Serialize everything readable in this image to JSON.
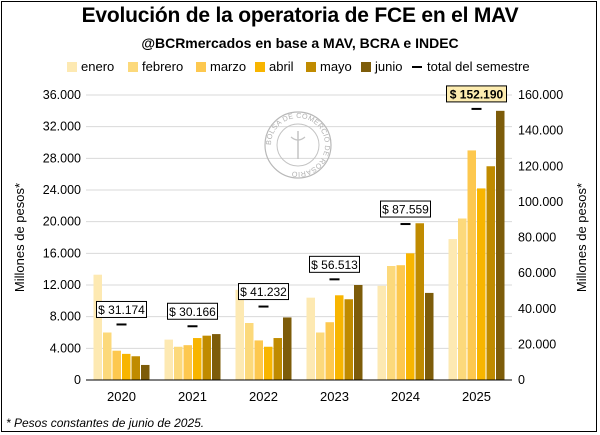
{
  "title": "Evolución de la operatoria de FCE en el MAV",
  "subtitle": "@BCRmercados en base a MAV, BCRA e INDEC",
  "footnote": "* Pesos constantes de junio de 2025.",
  "colors": {
    "enero": "#fde9b2",
    "febrero": "#fcd97b",
    "marzo": "#fdc84f",
    "abril": "#f8b500",
    "mayo": "#c08b00",
    "junio": "#7d5c0a",
    "total_marker": "#000000",
    "total_label_bg": "#ffffff",
    "total_label_bg_highlight": "#fdecb0",
    "grid": "#d9d9d9",
    "axis": "#808080"
  },
  "watermark_text": "BOLSA DE COMERCIO DE ROSARIO",
  "chart_data": {
    "type": "bar",
    "categories": [
      "2020",
      "2021",
      "2022",
      "2023",
      "2024",
      "2025"
    ],
    "series": [
      {
        "name": "enero",
        "values": [
          13300,
          5100,
          11400,
          10400,
          11900,
          17800
        ]
      },
      {
        "name": "febrero",
        "values": [
          6000,
          4200,
          7200,
          6000,
          14400,
          20400
        ]
      },
      {
        "name": "marzo",
        "values": [
          3700,
          4400,
          5000,
          7300,
          14500,
          29000
        ]
      },
      {
        "name": "abril",
        "values": [
          3300,
          5300,
          4200,
          10700,
          16000,
          24200
        ]
      },
      {
        "name": "mayo",
        "values": [
          3000,
          5600,
          5300,
          10200,
          19800,
          27000
        ]
      },
      {
        "name": "junio",
        "values": [
          1900,
          5800,
          7900,
          12000,
          11000,
          34000
        ]
      }
    ],
    "totals": {
      "name": "total del semestre",
      "values": [
        31174,
        30166,
        41232,
        56513,
        87559,
        152190
      ],
      "labels": [
        "$ 31.174",
        "$ 30.166",
        "$ 41.232",
        "$ 56.513",
        "$ 87.559",
        "$ 152.190"
      ]
    },
    "ylabel_left": "Millones de pesos*",
    "ylabel_right": "Millones de pesos*",
    "ylim_left": [
      0,
      36000
    ],
    "ylim_right": [
      0,
      160000
    ],
    "yticks_left": [
      0,
      4000,
      8000,
      12000,
      16000,
      20000,
      24000,
      28000,
      32000,
      36000
    ],
    "ytick_labels_left": [
      "0",
      "4.000",
      "8.000",
      "12.000",
      "16.000",
      "20.000",
      "24.000",
      "28.000",
      "32.000",
      "36.000"
    ],
    "yticks_right": [
      0,
      20000,
      40000,
      60000,
      80000,
      100000,
      120000,
      140000,
      160000
    ],
    "ytick_labels_right": [
      "0",
      "20.000",
      "40.000",
      "60.000",
      "80.000",
      "100.000",
      "120.000",
      "140.000",
      "160.000"
    ],
    "grid": true,
    "legend_position": "top"
  }
}
